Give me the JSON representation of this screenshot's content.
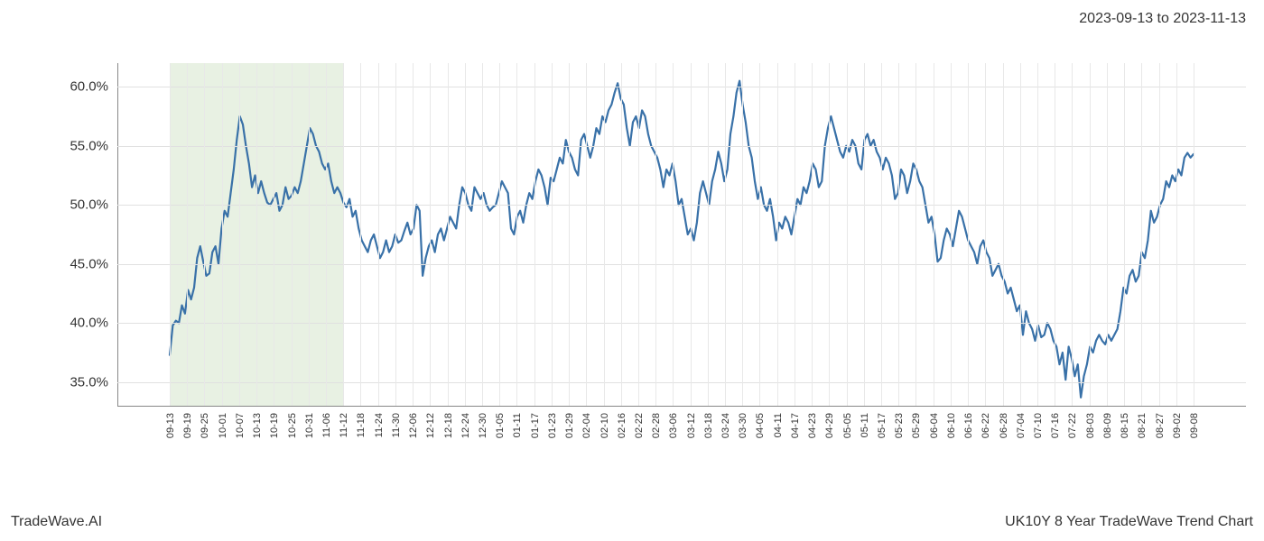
{
  "header": {
    "date_range": "2023-09-13 to 2023-11-13"
  },
  "footer": {
    "left": "TradeWave.AI",
    "right": "UK10Y 8 Year TradeWave Trend Chart"
  },
  "chart": {
    "type": "line",
    "background_color": "#ffffff",
    "grid_color": "#e0e0e0",
    "grid_color_minor": "#e8e8e8",
    "axis_color": "#888888",
    "line_color": "#3971a8",
    "line_width": 2.2,
    "highlight_band": {
      "color": "#d8e8d0",
      "opacity": 0.6,
      "x_start_index": 0,
      "x_end_index": 10
    },
    "ylim": [
      33,
      62
    ],
    "y_ticks": [
      35,
      40,
      45,
      50,
      55,
      60
    ],
    "y_tick_labels": [
      "35.0%",
      "40.0%",
      "45.0%",
      "50.0%",
      "55.0%",
      "60.0%"
    ],
    "y_label_fontsize": 15,
    "x_tick_fontsize": 11,
    "x_tick_rotation": -90,
    "x_labels": [
      "09-13",
      "09-19",
      "09-25",
      "10-01",
      "10-07",
      "10-13",
      "10-19",
      "10-25",
      "10-31",
      "11-06",
      "11-12",
      "11-18",
      "11-24",
      "11-30",
      "12-06",
      "12-12",
      "12-18",
      "12-24",
      "12-30",
      "01-05",
      "01-11",
      "01-17",
      "01-23",
      "01-29",
      "02-04",
      "02-10",
      "02-16",
      "02-22",
      "02-28",
      "03-06",
      "03-12",
      "03-18",
      "03-24",
      "03-30",
      "04-05",
      "04-11",
      "04-17",
      "04-23",
      "04-29",
      "05-05",
      "05-11",
      "05-17",
      "05-23",
      "05-29",
      "06-04",
      "06-10",
      "06-16",
      "06-22",
      "06-28",
      "07-04",
      "07-10",
      "07-16",
      "07-22",
      "08-03",
      "08-09",
      "08-15",
      "08-21",
      "08-27",
      "09-02",
      "09-08"
    ],
    "series": {
      "name": "UK10Y",
      "values": [
        37.3,
        39.8,
        40.2,
        40.0,
        41.5,
        40.8,
        42.8,
        42.0,
        43.0,
        45.5,
        46.5,
        45.2,
        44.0,
        44.2,
        46.0,
        46.5,
        45.0,
        48.0,
        49.5,
        49.0,
        51.0,
        53.0,
        55.5,
        57.5,
        56.8,
        55.0,
        53.5,
        51.5,
        52.5,
        51.0,
        52.0,
        51.0,
        50.2,
        50.0,
        50.5,
        51.0,
        49.5,
        50.0,
        51.5,
        50.5,
        50.8,
        51.5,
        51.0,
        52.0,
        53.5,
        55.0,
        56.5,
        56.0,
        55.0,
        54.5,
        53.5,
        53.0,
        53.5,
        52.0,
        51.0,
        51.5,
        51.0,
        50.2,
        49.8,
        50.5,
        49.0,
        49.5,
        48.0,
        47.0,
        46.5,
        46.0,
        47.0,
        47.5,
        46.5,
        45.5,
        46.0,
        47.0,
        46.0,
        46.5,
        47.5,
        46.8,
        47.0,
        47.8,
        48.5,
        47.5,
        48.0,
        50.0,
        49.5,
        44.0,
        45.5,
        46.5,
        47.0,
        46.0,
        47.5,
        48.0,
        47.0,
        48.0,
        49.0,
        48.5,
        48.0,
        50.0,
        51.5,
        51.0,
        50.0,
        49.5,
        51.5,
        51.0,
        50.5,
        51.0,
        50.0,
        49.5,
        49.8,
        50.0,
        51.0,
        52.0,
        51.5,
        51.0,
        48.0,
        47.5,
        49.0,
        49.5,
        48.5,
        50.0,
        51.0,
        50.5,
        52.0,
        53.0,
        52.5,
        51.5,
        50.0,
        52.3,
        52.0,
        53.0,
        54.0,
        53.5,
        55.5,
        54.5,
        54.0,
        53.0,
        52.5,
        55.5,
        56.0,
        55.0,
        54.0,
        55.0,
        56.5,
        56.0,
        57.5,
        57.0,
        58.0,
        58.5,
        59.5,
        60.3,
        59.0,
        58.5,
        56.5,
        55.0,
        57.0,
        57.5,
        56.5,
        58.0,
        57.5,
        56.0,
        55.0,
        54.5,
        54.0,
        53.0,
        51.5,
        53.0,
        52.5,
        53.5,
        52.0,
        50.0,
        50.5,
        49.0,
        47.5,
        48.0,
        47.0,
        48.5,
        51.0,
        52.0,
        51.0,
        50.0,
        52.0,
        53.0,
        54.5,
        53.5,
        52.0,
        53.0,
        56.0,
        57.5,
        59.5,
        60.5,
        58.5,
        57.0,
        55.0,
        54.0,
        52.0,
        50.5,
        51.5,
        50.0,
        49.5,
        50.5,
        49.0,
        47.0,
        48.5,
        48.0,
        49.0,
        48.5,
        47.5,
        49.0,
        50.5,
        50.0,
        51.5,
        51.0,
        52.0,
        53.5,
        53.0,
        51.5,
        52.0,
        55.0,
        56.5,
        57.5,
        56.5,
        55.5,
        54.5,
        54.0,
        55.0,
        54.5,
        55.5,
        55.0,
        53.5,
        53.0,
        55.5,
        56.0,
        55.0,
        55.5,
        54.5,
        54.0,
        53.0,
        54.0,
        53.5,
        52.5,
        50.5,
        51.0,
        53.0,
        52.5,
        51.0,
        52.0,
        53.5,
        53.0,
        52.0,
        51.5,
        50.0,
        48.5,
        49.0,
        47.5,
        45.2,
        45.5,
        47.0,
        48.0,
        47.5,
        46.5,
        48.0,
        49.5,
        49.0,
        48.0,
        47.0,
        46.5,
        46.0,
        45.0,
        46.5,
        47.0,
        46.0,
        45.5,
        44.0,
        44.5,
        45.0,
        44.0,
        43.5,
        42.5,
        43.0,
        42.0,
        41.0,
        41.5,
        39.0,
        41.0,
        40.0,
        39.5,
        38.5,
        39.8,
        38.8,
        39.0,
        40.0,
        39.5,
        38.5,
        38.0,
        36.5,
        37.5,
        35.2,
        38.0,
        37.0,
        35.5,
        36.5,
        33.7,
        35.5,
        36.5,
        38.0,
        37.5,
        38.5,
        39.0,
        38.5,
        38.2,
        39.0,
        38.5,
        39.0,
        39.5,
        41.0,
        43.0,
        42.5,
        44.0,
        44.5,
        43.5,
        44.0,
        46.0,
        45.5,
        47.0,
        49.5,
        48.5,
        49.0,
        50.0,
        50.5,
        52.0,
        51.5,
        52.5,
        52.0,
        53.0,
        52.5,
        54.0,
        54.4,
        54.0,
        54.3
      ]
    }
  }
}
